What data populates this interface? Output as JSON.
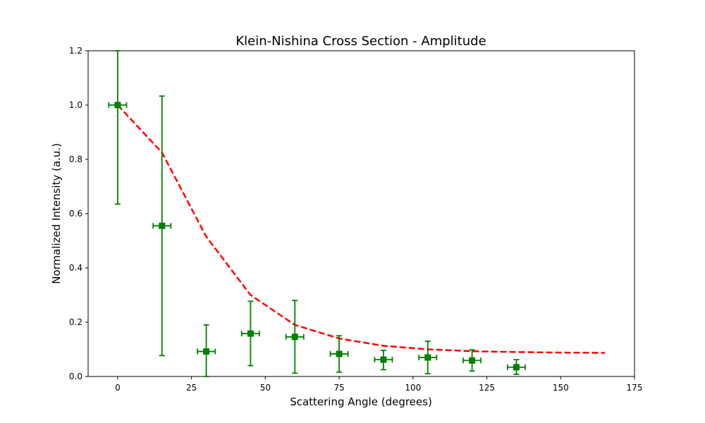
{
  "chart_data": {
    "type": "scatter",
    "title": "Klein-Nishina Cross Section - Amplitude",
    "xlabel": "Scattering Angle (degrees)",
    "ylabel": "Normalized Intensity (a.u.)",
    "xlim": [
      -10,
      175
    ],
    "ylim": [
      0,
      1.2
    ],
    "x_ticks": [
      0,
      25,
      50,
      75,
      100,
      125,
      150,
      175
    ],
    "y_ticks": [
      0.0,
      0.2,
      0.4,
      0.6,
      0.8,
      1.0,
      1.2
    ],
    "grid": false,
    "series": [
      {
        "kind": "errorbar",
        "color": "#008000",
        "marker": "square",
        "x": [
          0,
          15,
          30,
          45,
          60,
          75,
          90,
          105,
          120,
          135
        ],
        "y": [
          1.0,
          0.555,
          0.092,
          0.158,
          0.146,
          0.083,
          0.062,
          0.07,
          0.059,
          0.034
        ],
        "y_lower": [
          0.635,
          0.077,
          0.0,
          0.04,
          0.012,
          0.016,
          0.025,
          0.01,
          0.02,
          0.008
        ],
        "y_upper": [
          1.2,
          1.033,
          0.19,
          0.277,
          0.28,
          0.15,
          0.096,
          0.13,
          0.098,
          0.062
        ],
        "x_err": 3
      },
      {
        "kind": "line",
        "color": "#ff0000",
        "linestyle": "dashed",
        "x": [
          0,
          15,
          30,
          45,
          60,
          75,
          90,
          105,
          120,
          135,
          150,
          165
        ],
        "y": [
          1.0,
          0.825,
          0.515,
          0.3,
          0.19,
          0.14,
          0.113,
          0.1,
          0.093,
          0.09,
          0.088,
          0.087
        ]
      }
    ]
  }
}
